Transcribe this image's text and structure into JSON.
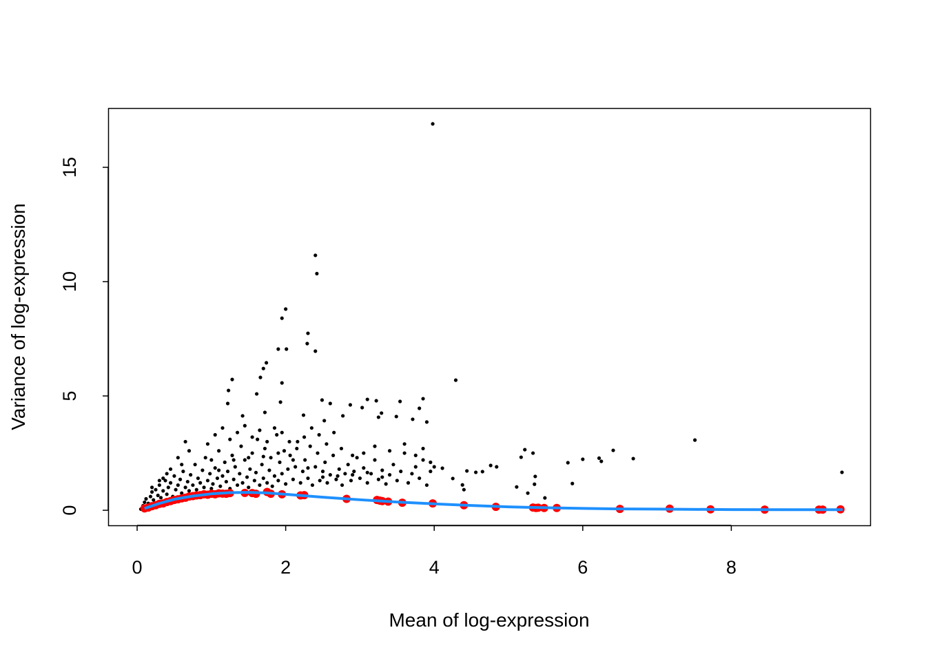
{
  "chart_data": {
    "type": "scatter",
    "title": "",
    "xlabel": "Mean of log-expression",
    "ylabel": "Variance of log-expression",
    "xlim": [
      -0.39,
      9.87
    ],
    "ylim": [
      -0.66,
      17.59
    ],
    "xticks": [
      0,
      2,
      4,
      6,
      8
    ],
    "yticks": [
      0,
      5,
      10,
      15
    ],
    "grid": false,
    "colors": {
      "genes": "#000000",
      "spike_ins": "#ff0000",
      "trend": "#1e90ff"
    },
    "series": [
      {
        "kind": "points",
        "color": "#000000",
        "points": [
          [
            0.05,
            0.05
          ],
          [
            0.08,
            0.2
          ],
          [
            0.1,
            0.35
          ],
          [
            0.12,
            0.5
          ],
          [
            0.15,
            0.3
          ],
          [
            0.18,
            0.6
          ],
          [
            0.2,
            0.8
          ],
          [
            0.22,
            0.45
          ],
          [
            0.25,
            0.9
          ],
          [
            0.28,
            0.65
          ],
          [
            0.3,
            1.1
          ],
          [
            0.32,
            0.55
          ],
          [
            0.35,
            0.85
          ],
          [
            0.38,
            1.3
          ],
          [
            0.4,
            0.7
          ],
          [
            0.42,
            1.0
          ],
          [
            0.45,
            1.2
          ],
          [
            0.48,
            0.6
          ],
          [
            0.5,
            1.5
          ],
          [
            0.52,
            0.9
          ],
          [
            0.55,
            1.1
          ],
          [
            0.58,
            1.35
          ],
          [
            0.6,
            0.75
          ],
          [
            0.62,
            1.7
          ],
          [
            0.65,
            1.0
          ],
          [
            0.68,
            1.25
          ],
          [
            0.7,
            0.85
          ],
          [
            0.72,
            1.55
          ],
          [
            0.75,
            1.1
          ],
          [
            0.78,
            2.0
          ],
          [
            0.8,
            0.9
          ],
          [
            0.82,
            1.4
          ],
          [
            0.85,
            1.2
          ],
          [
            0.88,
            1.75
          ],
          [
            0.9,
            1.0
          ],
          [
            0.92,
            2.3
          ],
          [
            0.95,
            1.3
          ],
          [
            0.98,
            1.6
          ],
          [
            1.0,
            0.95
          ],
          [
            1.02,
            1.15
          ],
          [
            1.05,
            1.85
          ],
          [
            1.08,
            1.4
          ],
          [
            1.1,
            2.6
          ],
          [
            1.12,
            1.05
          ],
          [
            1.15,
            1.5
          ],
          [
            1.18,
            2.1
          ],
          [
            1.2,
            1.25
          ],
          [
            1.22,
            1.7
          ],
          [
            1.25,
            0.95
          ],
          [
            1.28,
            2.4
          ],
          [
            1.3,
            1.35
          ],
          [
            1.32,
            1.9
          ],
          [
            1.35,
            1.1
          ],
          [
            1.38,
            1.6
          ],
          [
            1.4,
            2.8
          ],
          [
            1.42,
            1.2
          ],
          [
            1.45,
            2.2
          ],
          [
            1.48,
            1.45
          ],
          [
            1.5,
            1.0
          ],
          [
            1.52,
            1.8
          ],
          [
            1.55,
            2.5
          ],
          [
            1.58,
            1.3
          ],
          [
            1.6,
            1.65
          ],
          [
            1.62,
            3.1
          ],
          [
            1.65,
            1.1
          ],
          [
            1.68,
            2.0
          ],
          [
            1.7,
            1.4
          ],
          [
            1.72,
            2.7
          ],
          [
            1.75,
            1.2
          ],
          [
            1.78,
            1.75
          ],
          [
            1.8,
            2.3
          ],
          [
            1.82,
            1.05
          ],
          [
            1.85,
            1.5
          ],
          [
            1.88,
            3.3
          ],
          [
            1.9,
            1.3
          ],
          [
            1.92,
            2.1
          ],
          [
            1.95,
            1.6
          ],
          [
            1.98,
            2.6
          ],
          [
            2.0,
            1.15
          ],
          [
            2.03,
            1.8
          ],
          [
            2.06,
            2.4
          ],
          [
            2.1,
            1.35
          ],
          [
            2.13,
            1.9
          ],
          [
            2.16,
            3.0
          ],
          [
            2.2,
            1.2
          ],
          [
            2.23,
            1.7
          ],
          [
            2.26,
            2.2
          ],
          [
            2.3,
            1.4
          ],
          [
            2.33,
            2.8
          ],
          [
            2.36,
            1.1
          ],
          [
            2.4,
            1.9
          ],
          [
            2.43,
            2.5
          ],
          [
            2.46,
            1.3
          ],
          [
            2.5,
            1.7
          ],
          [
            2.53,
            2.1
          ],
          [
            2.56,
            1.2
          ],
          [
            2.6,
            1.55
          ],
          [
            2.64,
            2.4
          ],
          [
            2.68,
            1.35
          ],
          [
            2.72,
            1.8
          ],
          [
            2.76,
            1.1
          ],
          [
            2.8,
            1.6
          ],
          [
            2.84,
            2.0
          ],
          [
            2.88,
            1.3
          ],
          [
            2.92,
            1.7
          ],
          [
            2.96,
            2.3
          ],
          [
            3.0,
            1.4
          ],
          [
            3.05,
            1.85
          ],
          [
            3.1,
            1.2
          ],
          [
            3.15,
            1.6
          ],
          [
            3.2,
            2.2
          ],
          [
            3.25,
            1.35
          ],
          [
            3.3,
            1.75
          ],
          [
            3.35,
            1.15
          ],
          [
            3.4,
            1.55
          ],
          [
            3.45,
            2.0
          ],
          [
            3.5,
            1.3
          ],
          [
            3.55,
            1.7
          ],
          [
            3.6,
            2.5
          ],
          [
            3.65,
            1.2
          ],
          [
            3.7,
            1.6
          ],
          [
            3.75,
            1.9
          ],
          [
            3.8,
            1.4
          ],
          [
            3.85,
            2.2
          ],
          [
            3.9,
            1.1
          ],
          [
            3.95,
            1.7
          ],
          [
            0.6,
            2.0
          ],
          [
            0.55,
            2.3
          ],
          [
            0.65,
            3.0
          ],
          [
            0.7,
            2.6
          ],
          [
            0.95,
            2.9
          ],
          [
            1.05,
            3.3
          ],
          [
            1.15,
            3.6
          ],
          [
            1.25,
            3.1
          ],
          [
            1.35,
            3.4
          ],
          [
            1.45,
            3.7
          ],
          [
            1.55,
            3.2
          ],
          [
            1.65,
            3.5
          ],
          [
            1.75,
            3.0
          ],
          [
            1.85,
            3.6
          ],
          [
            1.95,
            3.4
          ],
          [
            2.05,
            3.0
          ],
          [
            2.15,
            2.7
          ],
          [
            2.25,
            3.2
          ],
          [
            2.35,
            3.6
          ],
          [
            2.45,
            3.3
          ],
          [
            2.55,
            2.9
          ],
          [
            2.65,
            3.4
          ],
          [
            2.75,
            2.7
          ],
          [
            2.9,
            2.4
          ],
          [
            3.05,
            2.5
          ],
          [
            3.2,
            2.8
          ],
          [
            3.4,
            2.6
          ],
          [
            3.6,
            2.9
          ],
          [
            3.75,
            2.4
          ],
          [
            3.85,
            2.7
          ],
          [
            3.95,
            2.1
          ],
          [
            4.0,
            1.9
          ],
          [
            0.4,
            1.6
          ],
          [
            0.35,
            1.4
          ],
          [
            0.45,
            1.8
          ],
          [
            0.3,
            1.3
          ],
          [
            0.2,
            1.0
          ],
          [
            1.0,
            2.2
          ],
          [
            1.1,
            1.75
          ],
          [
            1.3,
            2.2
          ],
          [
            1.5,
            2.3
          ],
          [
            1.7,
            2.35
          ],
          [
            1.9,
            2.5
          ],
          [
            2.1,
            2.2
          ],
          [
            2.3,
            1.85
          ],
          [
            2.5,
            1.45
          ],
          [
            2.7,
            1.5
          ],
          [
            2.9,
            1.55
          ],
          [
            3.1,
            1.65
          ],
          [
            3.3,
            1.45
          ],
          [
            3.98,
            16.9
          ],
          [
            2.4,
            11.15
          ],
          [
            2.42,
            10.35
          ],
          [
            2.0,
            8.8
          ],
          [
            1.95,
            8.4
          ],
          [
            2.3,
            7.74
          ],
          [
            2.29,
            7.29
          ],
          [
            2.4,
            6.96
          ],
          [
            1.9,
            7.05
          ],
          [
            2.01,
            7.05
          ],
          [
            1.74,
            6.45
          ],
          [
            1.7,
            6.2
          ],
          [
            1.28,
            5.72
          ],
          [
            1.95,
            5.57
          ],
          [
            1.66,
            5.81
          ],
          [
            1.61,
            5.09
          ],
          [
            1.23,
            5.24
          ],
          [
            1.93,
            4.73
          ],
          [
            2.49,
            4.82
          ],
          [
            2.6,
            4.67
          ],
          [
            2.24,
            4.16
          ],
          [
            2.77,
            4.13
          ],
          [
            2.87,
            4.61
          ],
          [
            3.03,
            4.49
          ],
          [
            3.1,
            4.85
          ],
          [
            3.22,
            4.79
          ],
          [
            3.54,
            4.76
          ],
          [
            3.85,
            4.88
          ],
          [
            3.8,
            4.46
          ],
          [
            3.29,
            4.25
          ],
          [
            3.25,
            4.07
          ],
          [
            3.49,
            4.1
          ],
          [
            3.9,
            3.86
          ],
          [
            3.71,
            3.98
          ],
          [
            2.52,
            3.92
          ],
          [
            1.72,
            4.28
          ],
          [
            1.42,
            4.13
          ],
          [
            1.22,
            4.67
          ],
          [
            4.29,
            5.69
          ],
          [
            4.11,
            1.84
          ],
          [
            4.25,
            1.39
          ],
          [
            4.38,
            1.11
          ],
          [
            4.4,
            0.9
          ],
          [
            4.44,
            1.72
          ],
          [
            4.56,
            1.66
          ],
          [
            4.65,
            1.69
          ],
          [
            4.76,
            1.96
          ],
          [
            4.84,
            1.9
          ],
          [
            5.11,
            1.02
          ],
          [
            5.17,
            2.32
          ],
          [
            5.22,
            2.65
          ],
          [
            5.33,
            2.5
          ],
          [
            5.36,
            1.48
          ],
          [
            5.35,
            1.14
          ],
          [
            5.26,
            0.75
          ],
          [
            5.49,
            0.54
          ],
          [
            5.8,
            2.08
          ],
          [
            5.86,
            1.17
          ],
          [
            6.0,
            2.23
          ],
          [
            6.22,
            2.28
          ],
          [
            6.25,
            2.14
          ],
          [
            6.41,
            2.62
          ],
          [
            6.68,
            2.26
          ],
          [
            7.51,
            3.07
          ],
          [
            9.49,
            1.66
          ]
        ]
      },
      {
        "kind": "points",
        "color": "#ff0000",
        "points": [
          [
            0.1,
            0.08
          ],
          [
            0.15,
            0.12
          ],
          [
            0.2,
            0.18
          ],
          [
            0.25,
            0.22
          ],
          [
            0.3,
            0.28
          ],
          [
            0.35,
            0.3
          ],
          [
            0.4,
            0.36
          ],
          [
            0.45,
            0.4
          ],
          [
            0.5,
            0.45
          ],
          [
            0.55,
            0.48
          ],
          [
            0.6,
            0.52
          ],
          [
            0.65,
            0.55
          ],
          [
            0.7,
            0.6
          ],
          [
            0.75,
            0.62
          ],
          [
            0.8,
            0.65
          ],
          [
            0.85,
            0.66
          ],
          [
            0.9,
            0.7
          ],
          [
            0.95,
            0.68
          ],
          [
            1.0,
            0.72
          ],
          [
            1.05,
            0.7
          ],
          [
            1.1,
            0.74
          ],
          [
            1.15,
            0.73
          ],
          [
            1.2,
            0.72
          ],
          [
            1.25,
            0.75
          ],
          [
            1.45,
            0.76
          ],
          [
            1.55,
            0.75
          ],
          [
            1.6,
            0.72
          ],
          [
            1.75,
            0.8
          ],
          [
            1.8,
            0.72
          ],
          [
            1.95,
            0.7
          ],
          [
            2.2,
            0.65
          ],
          [
            2.25,
            0.66
          ],
          [
            2.82,
            0.5
          ],
          [
            3.23,
            0.45
          ],
          [
            3.27,
            0.42
          ],
          [
            3.3,
            0.4
          ],
          [
            3.38,
            0.38
          ],
          [
            3.57,
            0.33
          ],
          [
            3.98,
            0.3
          ],
          [
            4.4,
            0.22
          ],
          [
            4.83,
            0.15
          ],
          [
            5.33,
            0.12
          ],
          [
            5.37,
            0.1
          ],
          [
            5.4,
            0.11
          ],
          [
            5.48,
            0.1
          ],
          [
            5.65,
            0.1
          ],
          [
            6.5,
            0.06
          ],
          [
            7.17,
            0.07
          ],
          [
            7.72,
            0.04
          ],
          [
            8.45,
            0.03
          ],
          [
            9.18,
            0.03
          ],
          [
            9.23,
            0.03
          ],
          [
            9.47,
            0.04
          ]
        ]
      },
      {
        "kind": "line",
        "color": "#1e90ff",
        "points": [
          [
            0.1,
            0.08
          ],
          [
            0.3,
            0.3
          ],
          [
            0.5,
            0.48
          ],
          [
            0.75,
            0.62
          ],
          [
            1.0,
            0.72
          ],
          [
            1.25,
            0.77
          ],
          [
            1.5,
            0.78
          ],
          [
            1.75,
            0.76
          ],
          [
            2.0,
            0.7
          ],
          [
            2.5,
            0.57
          ],
          [
            3.0,
            0.46
          ],
          [
            3.5,
            0.36
          ],
          [
            4.0,
            0.28
          ],
          [
            4.5,
            0.21
          ],
          [
            5.0,
            0.15
          ],
          [
            5.5,
            0.11
          ],
          [
            6.0,
            0.08
          ],
          [
            6.5,
            0.06
          ],
          [
            7.0,
            0.05
          ],
          [
            8.0,
            0.03
          ],
          [
            9.0,
            0.025
          ],
          [
            9.5,
            0.025
          ]
        ]
      }
    ]
  }
}
